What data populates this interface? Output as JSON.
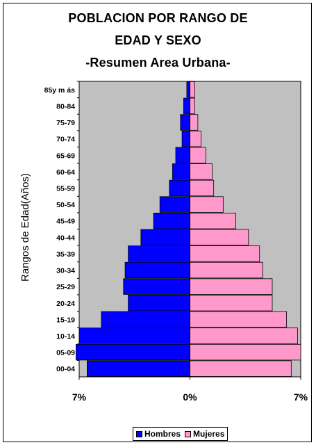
{
  "chart_data": {
    "type": "bar",
    "orientation": "horizontal-pyramid",
    "title_lines": [
      "POBLACION POR RANGO DE",
      "EDAD Y SEXO",
      "-Resumen Area Urbana-"
    ],
    "ylabel": "Rangos de Edad(Años)",
    "xlabel": "",
    "x_tick_labels": [
      "7%",
      "0%",
      "7%"
    ],
    "xlim": [
      -7,
      7
    ],
    "categories": [
      "00-04",
      "05-09",
      "10-14",
      "15-19",
      "20-24",
      "25-29",
      "30-34",
      "35-39",
      "40-44",
      "45-49",
      "50-54",
      "55-59",
      "60-64",
      "65-69",
      "70-74",
      "75-79",
      "80-84",
      "85y más"
    ],
    "category_labels": [
      "00-04",
      "05-09",
      "10-14",
      "15-19",
      "20-24",
      "25-29",
      "30-34",
      "35-39",
      "40-44",
      "45-49",
      "50-54",
      "55-59",
      "60-64",
      "65-69",
      "70-74",
      "75-79",
      "80-84",
      "85y m ás"
    ],
    "series": [
      {
        "name": "Hombres",
        "color": "#0000FF",
        "values": [
          6.5,
          7.2,
          7.0,
          5.6,
          3.9,
          4.2,
          4.1,
          3.9,
          3.1,
          2.3,
          1.9,
          1.3,
          1.1,
          0.9,
          0.5,
          0.6,
          0.4,
          0.2
        ]
      },
      {
        "name": "Mujeres",
        "color": "#FF99CC",
        "values": [
          6.4,
          7.0,
          6.8,
          6.1,
          5.2,
          5.2,
          4.6,
          4.4,
          3.7,
          2.9,
          2.1,
          1.5,
          1.4,
          1.0,
          0.7,
          0.5,
          0.3,
          0.3
        ]
      }
    ],
    "plot_background": "#C0C0C0",
    "grid": false,
    "legend_position": "bottom"
  }
}
